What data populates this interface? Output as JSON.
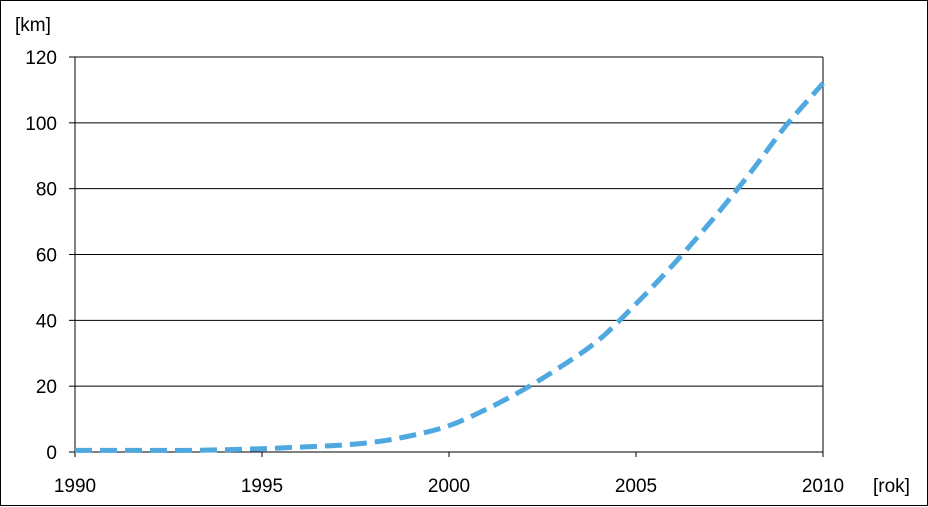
{
  "chart_data": {
    "type": "line",
    "title": "",
    "xlabel": "[rok]",
    "ylabel": "[km]",
    "xlim": [
      1990,
      2010
    ],
    "ylim": [
      0,
      120
    ],
    "x_ticks": [
      1990,
      1995,
      2000,
      2005,
      2010
    ],
    "y_ticks": [
      0,
      20,
      40,
      60,
      80,
      100,
      120
    ],
    "grid": "horizontal",
    "legend": "none",
    "colors": {
      "line": "#4fa8e0",
      "grid": "#000000",
      "axis": "#000000"
    },
    "line_style": "dashed",
    "series": [
      {
        "x": [
          1990,
          1991,
          1992,
          1993,
          1994,
          1995,
          1996,
          1997,
          1998,
          1999,
          2000,
          2001,
          2002,
          2003,
          2004,
          2005,
          2006,
          2007,
          2008,
          2009,
          2010
        ],
        "values": [
          0.5,
          0.5,
          0.5,
          0.5,
          0.7,
          1,
          1.5,
          2,
          3,
          5,
          8,
          13,
          19,
          26,
          34,
          45,
          57,
          70,
          84,
          99,
          112
        ]
      }
    ]
  }
}
